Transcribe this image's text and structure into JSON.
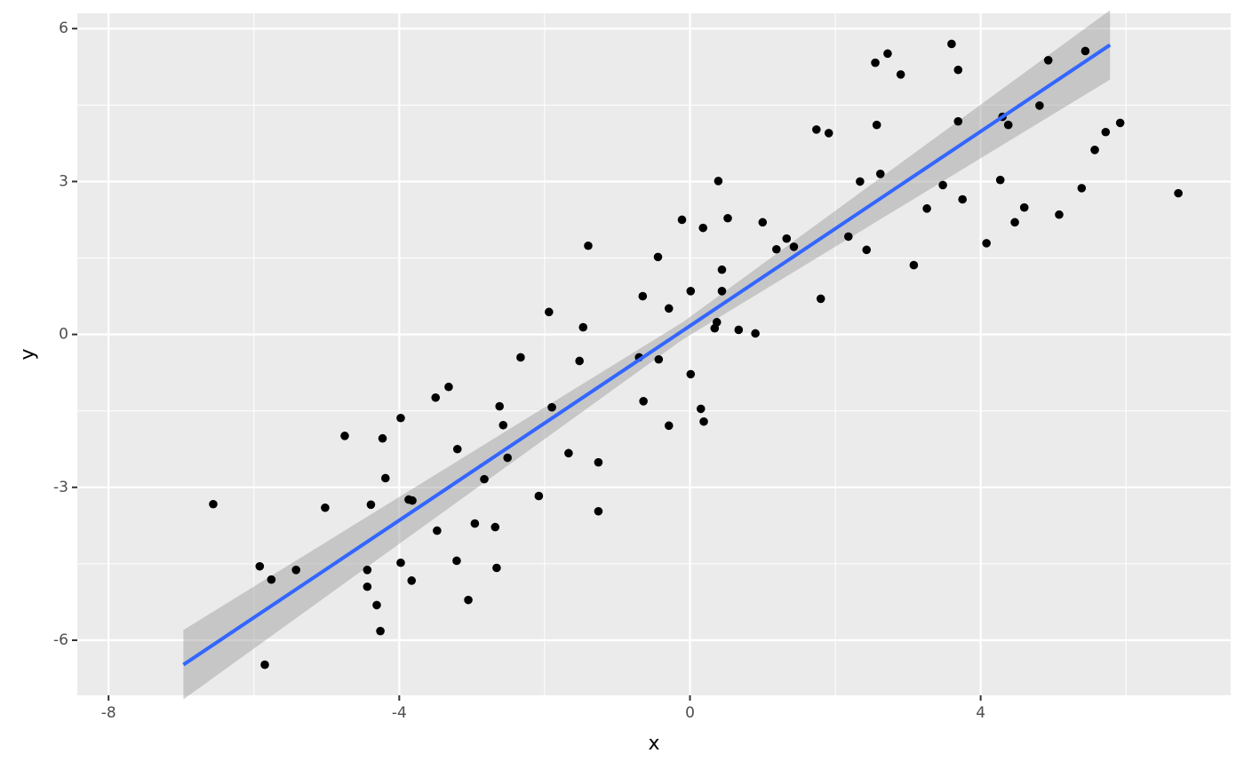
{
  "chart_data": {
    "type": "scatter",
    "x_label": "x",
    "y_label": "y",
    "xlim": [
      -8.43,
      7.44
    ],
    "ylim": [
      -7.08,
      6.3
    ],
    "xticks": [
      -8,
      -4,
      0,
      4
    ],
    "yticks": [
      6,
      3,
      0,
      -3,
      -6
    ],
    "xminor": [
      -6,
      -2,
      2,
      6
    ],
    "yminor": [
      4.5,
      1.5,
      -1.5,
      -4.5
    ],
    "grid": true,
    "color": "#000000",
    "x": [
      -6.56,
      -5.92,
      -5.76,
      -5.42,
      -5.85,
      -5.02,
      -4.75,
      -4.44,
      -4.44,
      -4.39,
      -4.31,
      -4.26,
      -4.23,
      -4.19,
      -3.98,
      -3.98,
      -3.87,
      -3.82,
      -3.83,
      -3.5,
      -3.48,
      -3.32,
      -3.21,
      -3.2,
      -3.05,
      -2.96,
      -2.83,
      -2.68,
      -2.66,
      -2.62,
      -2.57,
      -2.51,
      -2.33,
      -2.08,
      -1.94,
      -1.9,
      -1.67,
      -1.52,
      -1.47,
      -1.4,
      -1.26,
      -1.26,
      -0.7,
      -0.65,
      -0.64,
      -0.44,
      -0.43,
      -0.29,
      -0.29,
      -0.11,
      0.01,
      0.01,
      0.15,
      0.18,
      0.19,
      0.34,
      0.37,
      0.39,
      0.44,
      0.44,
      0.52,
      0.67,
      0.9,
      1.0,
      1.19,
      1.33,
      1.43,
      1.74,
      1.8,
      1.91,
      2.18,
      2.34,
      2.43,
      2.55,
      2.57,
      2.62,
      2.72,
      2.9,
      3.08,
      3.26,
      3.48,
      3.6,
      3.69,
      3.69,
      3.75,
      4.08,
      4.27,
      4.3,
      4.38,
      4.47,
      4.6,
      4.81,
      4.93,
      5.08,
      5.39,
      5.44,
      5.57,
      5.72,
      5.92,
      6.72
    ],
    "y": [
      -3.33,
      -4.55,
      -4.81,
      -4.62,
      -6.48,
      -3.4,
      -1.99,
      -4.62,
      -4.95,
      -3.34,
      -5.31,
      -5.82,
      -2.04,
      -2.82,
      -1.64,
      -4.48,
      -3.24,
      -3.26,
      -4.83,
      -1.24,
      -3.85,
      -1.03,
      -4.44,
      -2.25,
      -5.21,
      -3.71,
      -2.84,
      -3.78,
      -4.58,
      -1.41,
      -1.78,
      -2.42,
      -0.45,
      -3.17,
      0.44,
      -1.43,
      -2.33,
      -0.52,
      0.14,
      1.74,
      -2.51,
      -3.47,
      -0.45,
      0.75,
      -1.31,
      1.52,
      -0.49,
      0.51,
      -1.79,
      2.25,
      0.85,
      -0.78,
      -1.46,
      2.09,
      -1.71,
      0.12,
      0.24,
      3.01,
      1.27,
      0.85,
      2.28,
      0.09,
      0.02,
      2.2,
      1.67,
      1.88,
      1.72,
      4.02,
      0.7,
      3.95,
      1.92,
      3.0,
      1.66,
      5.33,
      4.11,
      3.15,
      5.51,
      5.1,
      1.36,
      2.47,
      2.93,
      5.7,
      5.19,
      4.18,
      2.65,
      1.79,
      3.03,
      4.27,
      4.11,
      2.2,
      2.49,
      4.49,
      5.38,
      2.35,
      2.87,
      5.56,
      3.62,
      3.97,
      4.15,
      2.77
    ],
    "fit": {
      "color": "#3366ff",
      "x": [
        -6.97,
        5.78
      ],
      "y": [
        -6.48,
        5.68
      ]
    },
    "band": {
      "color": "#999999",
      "x": [
        -6.97,
        -0.1,
        5.78
      ],
      "lower": [
        -7.16,
        -0.1,
        5.0
      ],
      "upper": [
        -5.8,
        0.24,
        6.36
      ]
    }
  }
}
